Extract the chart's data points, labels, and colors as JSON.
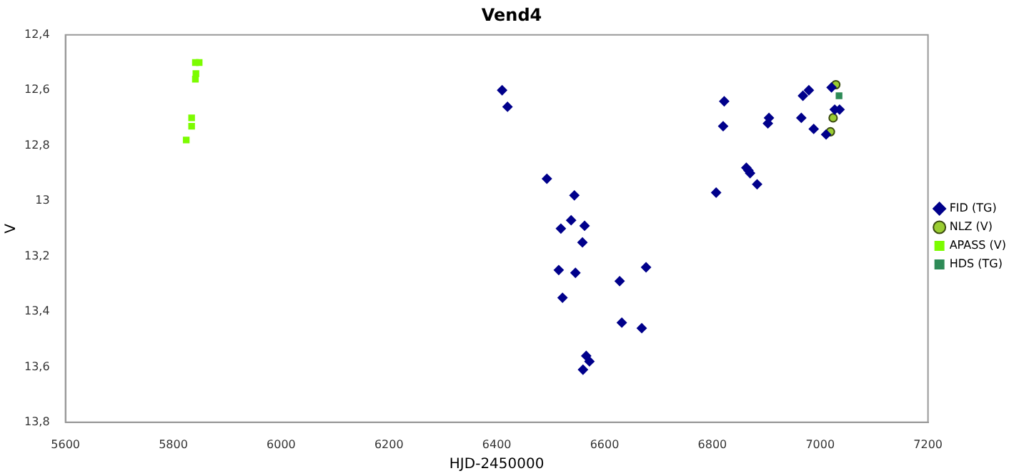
{
  "chart_data": {
    "type": "scatter",
    "title": "Vend4",
    "xlabel": "HJD-2450000",
    "ylabel": "V",
    "xlim": [
      5600,
      7200
    ],
    "xticks": [
      5600,
      5800,
      6000,
      6200,
      6400,
      6600,
      6800,
      7000,
      7200
    ],
    "ylim": [
      13.8,
      12.4
    ],
    "yticks": [
      {
        "value": 12.4,
        "label": "12,4"
      },
      {
        "value": 12.6,
        "label": "12,6"
      },
      {
        "value": 12.8,
        "label": "12,8"
      },
      13,
      {
        "value": 13.2,
        "label": "13,2"
      },
      {
        "value": 13.4,
        "label": "13,4"
      },
      {
        "value": 13.6,
        "label": "13,6"
      },
      {
        "value": 13.8,
        "label": "13,8"
      }
    ],
    "grid": false,
    "legend": "right",
    "series": [
      {
        "name": "FID (TG)",
        "color": "#00008b",
        "marker": "diamond",
        "x": [
          6410,
          6420,
          6493,
          6544,
          6538,
          6563,
          6519,
          6559,
          6677,
          6515,
          6546,
          6628,
          6522,
          6632,
          6669,
          6566,
          6572,
          6560,
          6822,
          6820,
          6905,
          6903,
          6863,
          6867,
          6870,
          6883,
          6807,
          6979,
          6968,
          7021,
          7027,
          7036,
          6965,
          6988,
          7011
        ],
        "values": [
          12.6,
          12.66,
          12.92,
          12.98,
          13.07,
          13.09,
          13.1,
          13.15,
          13.24,
          13.25,
          13.26,
          13.29,
          13.35,
          13.44,
          13.46,
          13.56,
          13.58,
          13.61,
          12.64,
          12.73,
          12.7,
          12.72,
          12.88,
          12.89,
          12.9,
          12.94,
          12.97,
          12.6,
          12.62,
          12.59,
          12.67,
          12.67,
          12.7,
          12.74,
          12.76
        ]
      },
      {
        "name": "NLZ (V)",
        "color": "#9acd32",
        "marker": "circle",
        "x": [
          7029,
          7024,
          7019
        ],
        "values": [
          12.58,
          12.7,
          12.75
        ]
      },
      {
        "name": "APASS (V)",
        "color": "#7cfc00",
        "marker": "square",
        "x": [
          5841,
          5848,
          5842,
          5841,
          5834,
          5834,
          5824
        ],
        "values": [
          12.5,
          12.5,
          12.54,
          12.56,
          12.7,
          12.73,
          12.78
        ]
      },
      {
        "name": "HDS (TG)",
        "color": "#2e8b57",
        "marker": "square",
        "x": [
          7035
        ],
        "values": [
          12.62
        ]
      }
    ]
  }
}
